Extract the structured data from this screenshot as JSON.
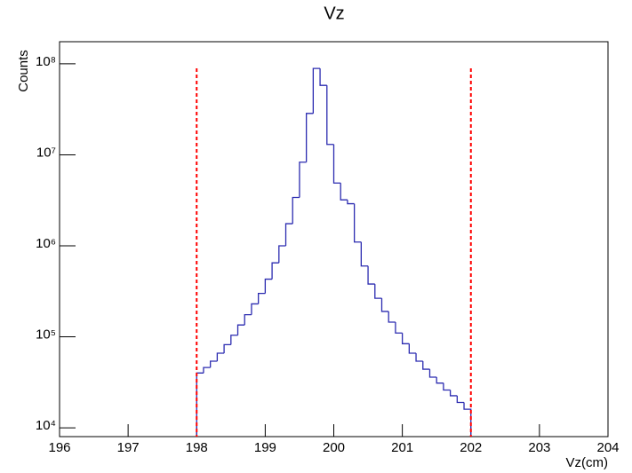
{
  "chart_data": {
    "type": "histogram",
    "title": "Vz",
    "x_label": "Vz(cm)",
    "y_label": "Counts",
    "bins": [
      198.0,
      198.1,
      198.2,
      198.3,
      198.4,
      198.5,
      198.6,
      198.7,
      198.8,
      198.9,
      199.0,
      199.1,
      199.2,
      199.3,
      199.4,
      199.5,
      199.6,
      199.7,
      199.8,
      199.9,
      200.0,
      200.1,
      200.2,
      200.3,
      200.4,
      200.5,
      200.6,
      200.7,
      200.8,
      200.9,
      201.0,
      201.1,
      201.2,
      201.3,
      201.4,
      201.5,
      201.6,
      201.7,
      201.8,
      201.9,
      202.0
    ],
    "values": [
      40000,
      46000,
      54000,
      66000,
      82000,
      104000,
      135000,
      175000,
      230000,
      300000,
      430000,
      650000,
      1000000,
      1750000,
      3400000,
      8300000,
      28500000,
      89000000,
      58000000,
      13000000,
      4900000,
      3200000,
      2900000,
      1100000,
      600000,
      380000,
      265000,
      190000,
      145000,
      110000,
      84000,
      66000,
      54000,
      44000,
      36000,
      31000,
      26000,
      22500,
      19000,
      16000
    ],
    "color": "#2b2bb0",
    "cut_lines": [
      198,
      202
    ],
    "cut_color": "#ff0000",
    "xlim": [
      196,
      204
    ],
    "xticks": [
      196,
      197,
      198,
      199,
      200,
      201,
      202,
      203,
      204
    ],
    "ylim": [
      8000,
      175000000
    ],
    "log_y": true,
    "yticks": [
      {
        "value": 10000,
        "label": "10⁴"
      },
      {
        "value": 100000,
        "label": "10⁵"
      },
      {
        "value": 1000000,
        "label": "10⁶"
      },
      {
        "value": 10000000,
        "label": "10⁷"
      },
      {
        "value": 100000000,
        "label": "10⁸"
      }
    ]
  }
}
